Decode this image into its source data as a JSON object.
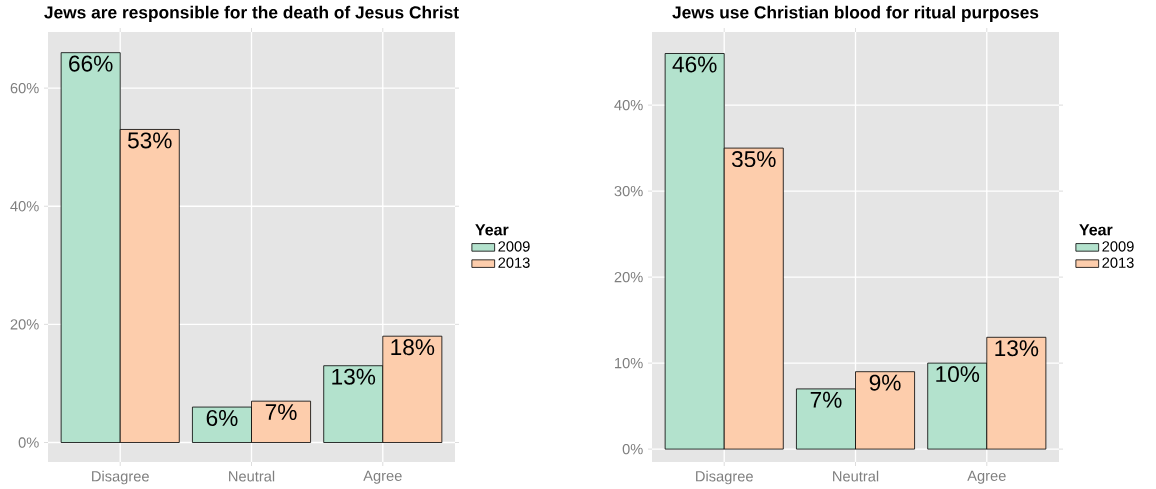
{
  "chart_data": [
    {
      "type": "bar",
      "title": "Jews are responsible for the death of Jesus Christ",
      "categories": [
        "Disagree",
        "Neutral",
        "Agree"
      ],
      "series": [
        {
          "name": "2009",
          "color": "#b3e2cd",
          "values": [
            66,
            6,
            13
          ],
          "value_labels": [
            "66%",
            "6%",
            "13%"
          ]
        },
        {
          "name": "2013",
          "color": "#fdcdac",
          "values": [
            53,
            7,
            18
          ],
          "value_labels": [
            "53%",
            "7%",
            "18%"
          ]
        }
      ],
      "ylim": [
        -3.3,
        69.5
      ],
      "yticks": [
        {
          "value": 0,
          "label": "0%"
        },
        {
          "value": 20,
          "label": "20%"
        },
        {
          "value": 40,
          "label": "40%"
        },
        {
          "value": 60,
          "label": "60%"
        }
      ],
      "grid": true,
      "legend": "right",
      "legend_title": "Year"
    },
    {
      "type": "bar",
      "title": "Jews use Christian blood for ritual purposes",
      "categories": [
        "Disagree",
        "Neutral",
        "Agree"
      ],
      "series": [
        {
          "name": "2009",
          "color": "#b3e2cd",
          "values": [
            46,
            7,
            10
          ],
          "value_labels": [
            "46%",
            "7%",
            "10%"
          ]
        },
        {
          "name": "2013",
          "color": "#fdcdac",
          "values": [
            35,
            9,
            13
          ],
          "value_labels": [
            "35%",
            "9%",
            "13%"
          ]
        }
      ],
      "ylim": [
        -1.5,
        48.5
      ],
      "yticks": [
        {
          "value": 0,
          "label": "0%"
        },
        {
          "value": 10,
          "label": "10%"
        },
        {
          "value": 20,
          "label": "20%"
        },
        {
          "value": 30,
          "label": "30%"
        },
        {
          "value": 40,
          "label": "40%"
        }
      ],
      "grid": true,
      "legend": "right",
      "legend_title": "Year"
    }
  ]
}
